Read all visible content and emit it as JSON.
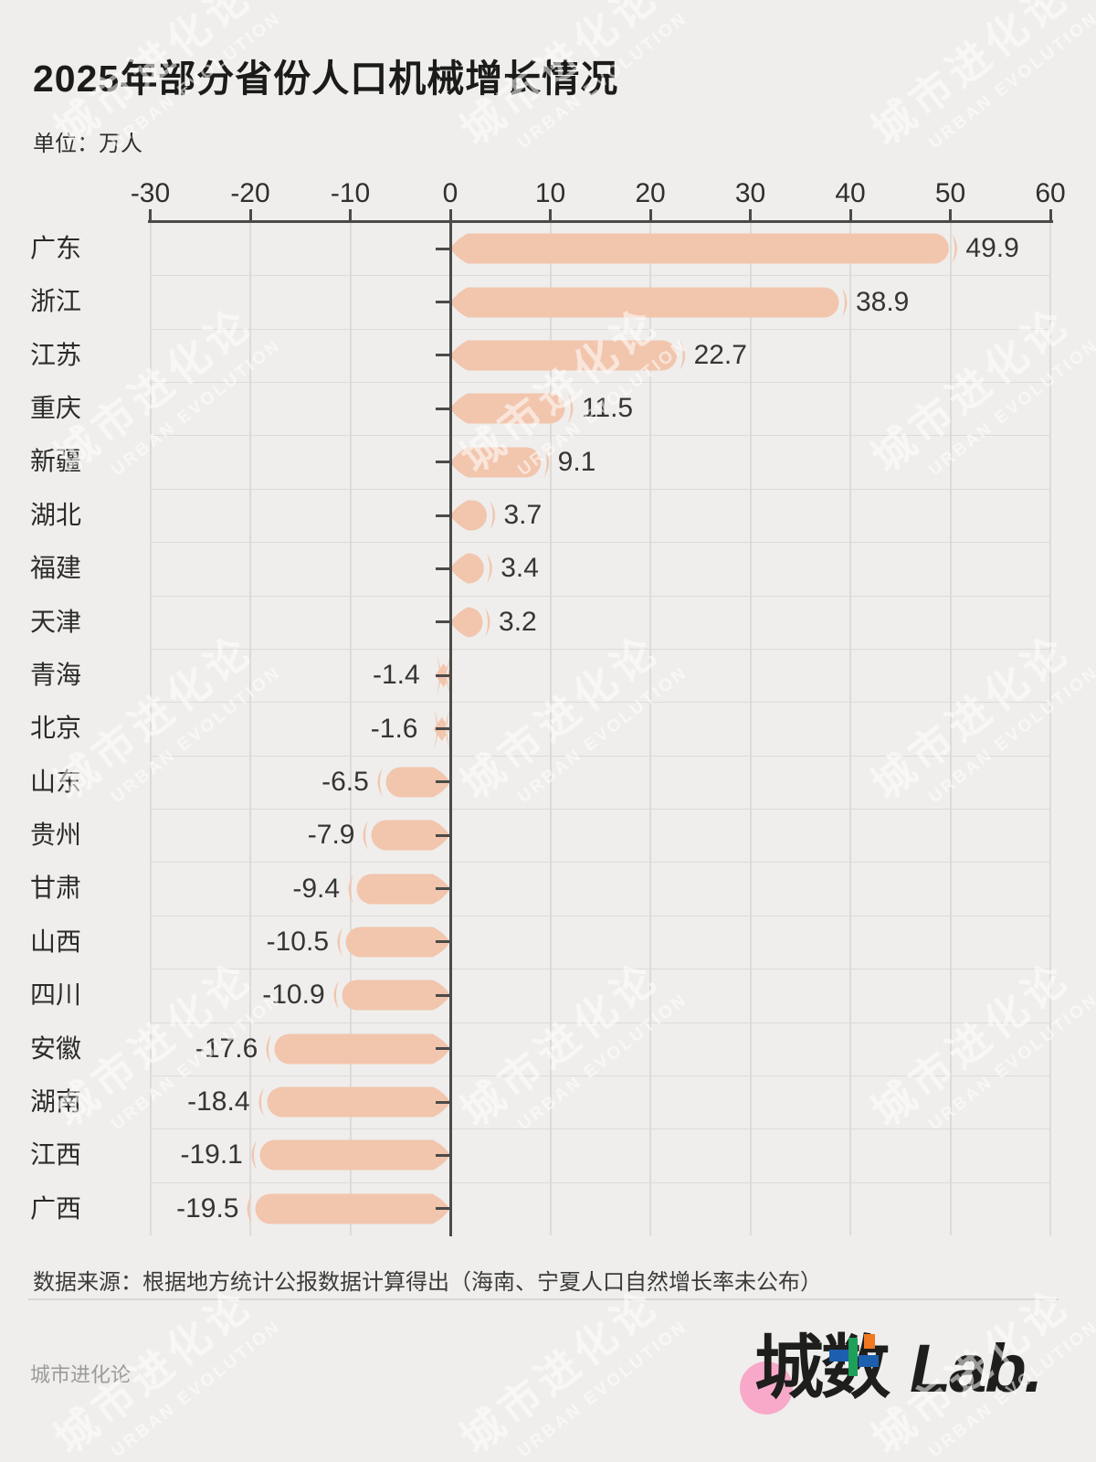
{
  "title": "2025年部分省份人口机械增长情况",
  "unit_label": "单位：万人",
  "chart_data": {
    "type": "bar",
    "orientation": "horizontal-diverging",
    "title": "2025年部分省份人口机械增长情况",
    "unit": "万人",
    "categories": [
      "广东",
      "浙江",
      "江苏",
      "重庆",
      "新疆",
      "湖北",
      "福建",
      "天津",
      "青海",
      "北京",
      "山东",
      "贵州",
      "甘肃",
      "山西",
      "四川",
      "安徽",
      "湖南",
      "江西",
      "广西"
    ],
    "values": [
      49.9,
      38.9,
      22.7,
      11.5,
      9.1,
      3.7,
      3.4,
      3.2,
      -1.4,
      -1.6,
      -6.5,
      -7.9,
      -9.4,
      -10.5,
      -10.9,
      -17.6,
      -18.4,
      -19.1,
      -19.5
    ],
    "xlim": [
      -30,
      60
    ],
    "x_ticks": [
      -30,
      -20,
      -10,
      0,
      10,
      20,
      30,
      40,
      50,
      60
    ],
    "grid": true,
    "legend": "none",
    "bar_color": "#F2C5AD"
  },
  "source_note": "数据来源：根据地方统计公报数据计算得出（海南、宁夏人口自然增长率未公布）",
  "watermark": {
    "line1": "城市进化论",
    "line2": "URBAN EVOLUTION"
  },
  "footer": {
    "brand": "城市进化论",
    "logo_cn": "城数",
    "logo_latin": "Lab."
  },
  "colors": {
    "background": "#EFEEEC",
    "bar": "#F2C5AD",
    "axis": "#4A4A48",
    "grid": "#DCDBD8",
    "text": "#2B2B29",
    "muted": "#9B9B9A",
    "logo_pink": "#F8A9C9",
    "logo_green": "#1FA05A",
    "logo_blue": "#1B5FAE",
    "logo_orange": "#F07820"
  }
}
